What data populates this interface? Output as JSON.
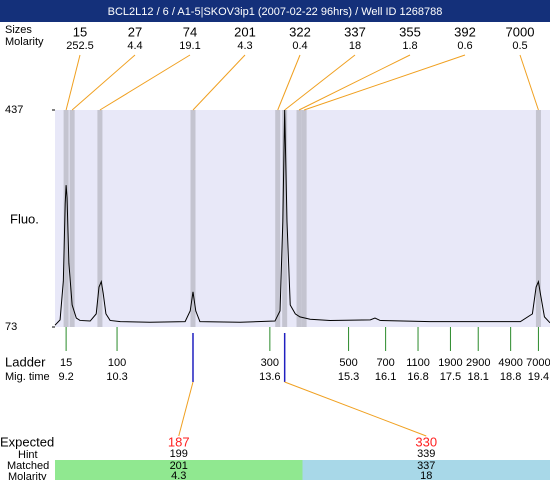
{
  "chart_data": {
    "type": "line",
    "title": "BCL2L12 / 6 / A1-5|SKOV3ip1 (2007-02-22 96hrs) / Well ID 1268788",
    "labels": {
      "sizes": "Sizes",
      "molarity": "Molarity",
      "y_label": "Fluo.",
      "ladder": "Ladder",
      "mig_time": "Mig. time",
      "expected": "Expected",
      "hint": "Hint",
      "matched": "Matched",
      "matched_molarity": "Molarity"
    },
    "ylim": [
      73,
      437
    ],
    "yticks": [
      437,
      73
    ],
    "xlim": [
      8.96,
      19.65
    ],
    "x": [
      8.96,
      9.07,
      9.14,
      9.18,
      9.2,
      9.22,
      9.26,
      9.33,
      9.42,
      9.5,
      9.72,
      9.85,
      9.91,
      9.96,
      10.0,
      10.06,
      10.15,
      10.37,
      11.01,
      11.77,
      11.88,
      11.94,
      12.0,
      12.09,
      12.96,
      13.71,
      13.82,
      13.88,
      13.92,
      13.97,
      14.04,
      14.15,
      14.25,
      14.47,
      14.9,
      15.77,
      15.87,
      15.98,
      17.06,
      19.01,
      19.27,
      19.35,
      19.4,
      19.44,
      19.53,
      19.65
    ],
    "values": [
      76,
      85,
      150,
      280,
      311,
      290,
      180,
      110,
      88,
      84,
      83,
      95,
      140,
      149,
      130,
      95,
      84,
      82,
      81,
      82,
      100,
      132,
      100,
      82,
      81,
      83,
      100,
      250,
      437,
      250,
      110,
      95,
      90,
      86,
      84,
      85,
      88,
      84,
      82,
      82,
      95,
      140,
      149,
      130,
      90,
      80
    ],
    "color": "#000000",
    "peaks": [
      {
        "size": 15,
        "molarity": 252.5,
        "time": 9.2
      },
      {
        "size": 27,
        "molarity": 4.4,
        "time": 9.33
      },
      {
        "size": 74,
        "molarity": 19.1,
        "time": 9.93
      },
      {
        "size": 201,
        "molarity": 4.3,
        "time": 11.94
      },
      {
        "size": 322,
        "molarity": 0.4,
        "time": 13.77
      },
      {
        "size": 337,
        "molarity": 18,
        "time": 13.92
      },
      {
        "size": 355,
        "molarity": 1.8,
        "time": 14.23
      },
      {
        "size": 392,
        "molarity": 0.6,
        "time": 14.34
      },
      {
        "size": 7000,
        "molarity": 0.5,
        "time": 19.4
      }
    ],
    "ladder": [
      {
        "size": 15,
        "time": 9.2
      },
      {
        "size": 100,
        "time": 10.3
      },
      {
        "size": 300,
        "time": 13.6
      },
      {
        "size": 500,
        "time": 15.3
      },
      {
        "size": 700,
        "time": 16.1
      },
      {
        "size": 1100,
        "time": 16.8
      },
      {
        "size": 1900,
        "time": 17.5
      },
      {
        "size": 2900,
        "time": 18.1
      },
      {
        "size": 4900,
        "time": 18.8
      },
      {
        "size": 7000,
        "time": 19.4
      }
    ],
    "expected": [
      {
        "expected": 187,
        "hint": 199,
        "matched": 201,
        "molarity": 4.3,
        "time": 11.94,
        "color": "#90e890"
      },
      {
        "expected": 330,
        "hint": 339,
        "matched": 337,
        "molarity": 18,
        "time": 13.92,
        "color": "#a8d8e8"
      }
    ]
  }
}
